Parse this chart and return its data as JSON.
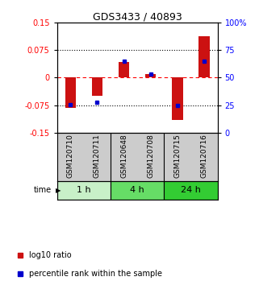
{
  "title": "GDS3433 / 40893",
  "samples": [
    "GSM120710",
    "GSM120711",
    "GSM120648",
    "GSM120708",
    "GSM120715",
    "GSM120716"
  ],
  "log10_ratio": [
    -0.082,
    -0.05,
    0.043,
    0.01,
    -0.115,
    0.113
  ],
  "percentile_rank": [
    25.5,
    27.5,
    65.0,
    53.0,
    24.5,
    65.0
  ],
  "groups": [
    {
      "label": "1 h",
      "indices": [
        0,
        1
      ],
      "color": "#c8f0c8"
    },
    {
      "label": "4 h",
      "indices": [
        2,
        3
      ],
      "color": "#66dd66"
    },
    {
      "label": "24 h",
      "indices": [
        4,
        5
      ],
      "color": "#33cc33"
    }
  ],
  "bar_color": "#cc1111",
  "point_color": "#0000cc",
  "ylim_left": [
    -0.15,
    0.15
  ],
  "ylim_right": [
    0,
    100
  ],
  "yticks_left": [
    -0.15,
    -0.075,
    0,
    0.075,
    0.15
  ],
  "ytick_labels_left": [
    "-0.15",
    "-0.075",
    "0",
    "0.075",
    "0.15"
  ],
  "yticks_right": [
    0,
    25,
    50,
    75,
    100
  ],
  "ytick_labels_right": [
    "0",
    "25",
    "50",
    "75",
    "100%"
  ],
  "background_color": "#ffffff",
  "label_bg": "#cccccc",
  "bar_width": 0.4
}
